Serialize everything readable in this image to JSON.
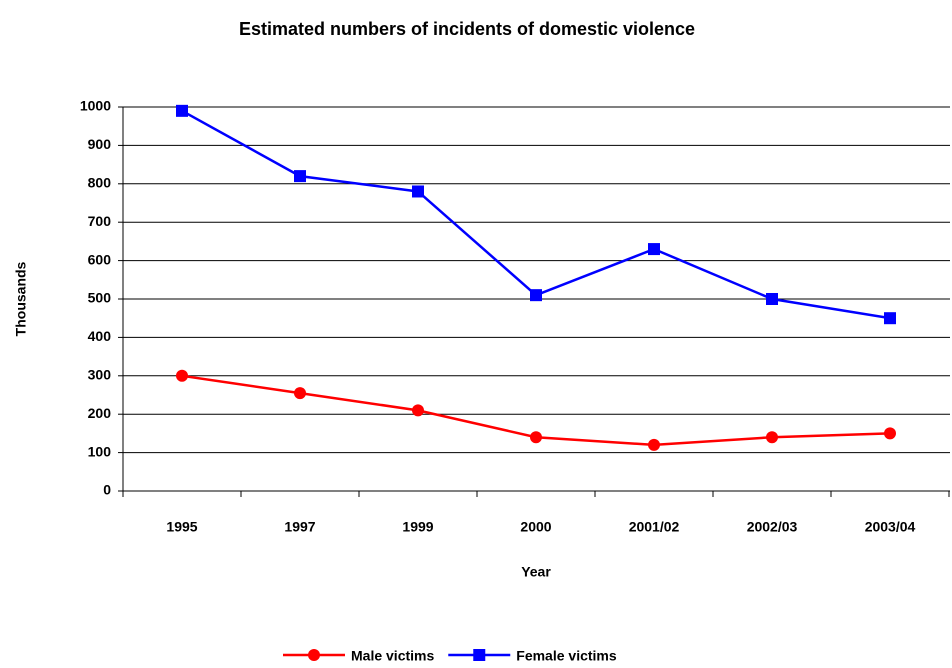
{
  "chart_data": {
    "type": "line",
    "title": "Estimated numbers of incidents of domestic violence",
    "x_label": "Year",
    "y_label": "Thousands",
    "categories": [
      "1995",
      "1997",
      "1999",
      "2000",
      "2001/02",
      "2002/03",
      "2003/04"
    ],
    "series": [
      {
        "name": "Male victims",
        "color": "#ff0000",
        "marker": "circle",
        "values": [
          300,
          255,
          210,
          140,
          120,
          140,
          150
        ]
      },
      {
        "name": "Female victims",
        "color": "#0000ff",
        "marker": "square",
        "values": [
          990,
          820,
          780,
          510,
          630,
          500,
          450
        ]
      }
    ],
    "ylim": [
      0,
      1000
    ],
    "yticks": [
      0,
      100,
      200,
      300,
      400,
      500,
      600,
      700,
      800,
      900,
      1000
    ],
    "grid": true,
    "legend": "bottom"
  }
}
